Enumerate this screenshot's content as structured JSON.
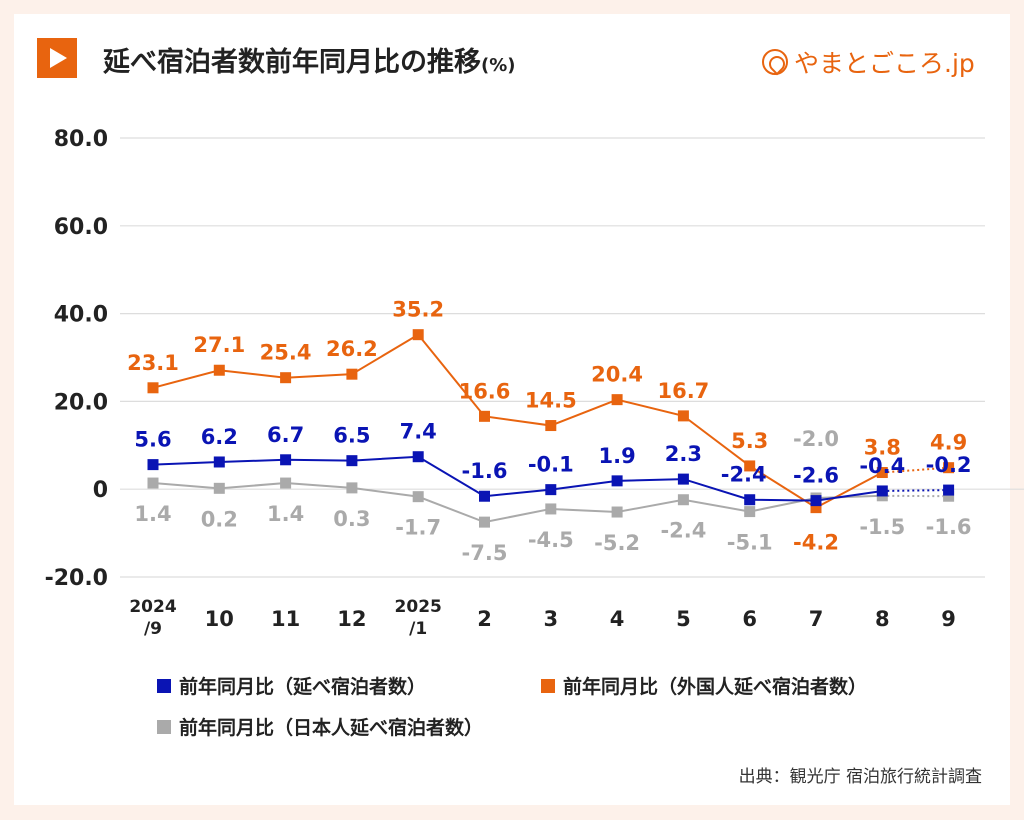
{
  "header": {
    "title": "延べ宿泊者数前年同月比の推移",
    "unit": "(%)",
    "logo_text": "やまとごころ.jp"
  },
  "source": "出典：観光庁 宿泊旅行統計調査",
  "colors": {
    "accent": "#e8640f",
    "blue": "#0a14b4",
    "orange": "#e8640f",
    "gray": "#aaaaaa"
  },
  "chart_data": {
    "type": "line",
    "title": "延べ宿泊者数前年同月比の推移(%)",
    "categories": [
      "2024\n/9",
      "10",
      "11",
      "12",
      "2025\n/1",
      "2",
      "3",
      "4",
      "5",
      "6",
      "7",
      "8",
      "9"
    ],
    "category_lines": [
      [
        "2024",
        "/9"
      ],
      [
        "10"
      ],
      [
        "11"
      ],
      [
        "12"
      ],
      [
        "2025",
        "/1"
      ],
      [
        "2"
      ],
      [
        "3"
      ],
      [
        "4"
      ],
      [
        "5"
      ],
      [
        "6"
      ],
      [
        "7"
      ],
      [
        "8"
      ],
      [
        "9"
      ]
    ],
    "ylim": [
      -20,
      80
    ],
    "yticks": [
      -20,
      0,
      20,
      40,
      60,
      80
    ],
    "ytick_labels": [
      "-20.0",
      "0",
      "20.0",
      "40.0",
      "60.0",
      "80.0"
    ],
    "grid": true,
    "legend_position": "bottom",
    "last_segment_dotted": true,
    "series": [
      {
        "name": "前年同月比（延べ宿泊者数）",
        "color": "#0a14b4",
        "values": [
          5.6,
          6.2,
          6.7,
          6.5,
          7.4,
          -1.6,
          -0.1,
          1.9,
          2.3,
          -2.4,
          -2.6,
          -0.4,
          -0.2
        ],
        "labels": [
          "5.6",
          "6.2",
          "6.7",
          "6.5",
          "7.4",
          "-1.6",
          "-0.1",
          "1.9",
          "2.3",
          "-2.4",
          "-2.6",
          "-0.4",
          "-0.2"
        ]
      },
      {
        "name": "前年同月比（外国人延べ宿泊者数）",
        "color": "#e8640f",
        "values": [
          23.1,
          27.1,
          25.4,
          26.2,
          35.2,
          16.6,
          14.5,
          20.4,
          16.7,
          5.3,
          -4.2,
          3.8,
          4.9
        ],
        "labels": [
          "23.1",
          "27.1",
          "25.4",
          "26.2",
          "35.2",
          "16.6",
          "14.5",
          "20.4",
          "16.7",
          "5.3",
          "-4.2",
          "3.8",
          "4.9"
        ]
      },
      {
        "name": "前年同月比（日本人延べ宿泊者数）",
        "color": "#aaaaaa",
        "values": [
          1.4,
          0.2,
          1.4,
          0.3,
          -1.7,
          -7.5,
          -4.5,
          -5.2,
          -2.4,
          -5.1,
          -2.0,
          -1.5,
          -1.6
        ],
        "labels": [
          "1.4",
          "0.2",
          "1.4",
          "0.3",
          "-1.7",
          "-7.5",
          "-4.5",
          "-5.2",
          "-2.4",
          "-5.1",
          "-2.0",
          "-1.5",
          "-1.6"
        ]
      }
    ]
  }
}
